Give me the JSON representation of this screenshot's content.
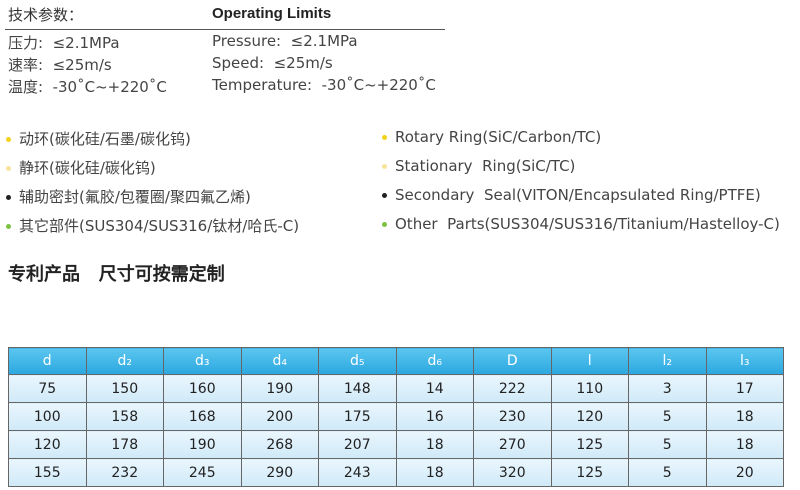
{
  "spec": {
    "title_cn": "技术参数：",
    "title_en": "Operating Limits",
    "rows_cn": [
      "压力:  ≤2.1MPa",
      "速率:  ≤25m/s",
      "温度:  -30˚C~+220˚C"
    ],
    "rows_en": [
      "Pressure:  ≤2.1MPa",
      "Speed:  ≤25m/s",
      "Temperature:  -30˚C~+220˚C"
    ]
  },
  "materials": [
    {
      "cn": "动环(碳化硅/石墨/碳化钨)",
      "en": "Rotary Ring(SiC/Carbon/TC)",
      "color": "#f2d21b"
    },
    {
      "cn": "静环(碳化硅/碳化钨)",
      "en": "Stationary  Ring(SiC/TC)",
      "color": "#f7e49a"
    },
    {
      "cn": "辅助密封(氟胶/包覆圈/聚四氟乙烯)",
      "en": "Secondary  Seal(VITON/Encapsulated Ring/PTFE)",
      "color": "#222222"
    },
    {
      "cn": "其它部件(SUS304/SUS316/钛材/哈氏-C)",
      "en": "Other  Parts(SUS304/SUS316/Titanium/Hastelloy-C)",
      "color": "#7cc242"
    }
  ],
  "note": "专利产品   尺寸可按需定制",
  "table": {
    "header": [
      "d",
      "d₂",
      "d₃",
      "d₄",
      "d₅",
      "d₆",
      "D",
      "l",
      "l₂",
      "l₃"
    ],
    "rows": [
      [
        "75",
        "150",
        "160",
        "190",
        "148",
        "14",
        "222",
        "110",
        "3",
        "17"
      ],
      [
        "100",
        "158",
        "168",
        "200",
        "175",
        "16",
        "230",
        "120",
        "5",
        "18"
      ],
      [
        "120",
        "178",
        "190",
        "268",
        "207",
        "18",
        "270",
        "125",
        "5",
        "18"
      ],
      [
        "155",
        "232",
        "245",
        "290",
        "243",
        "18",
        "320",
        "125",
        "5",
        "20"
      ]
    ]
  }
}
